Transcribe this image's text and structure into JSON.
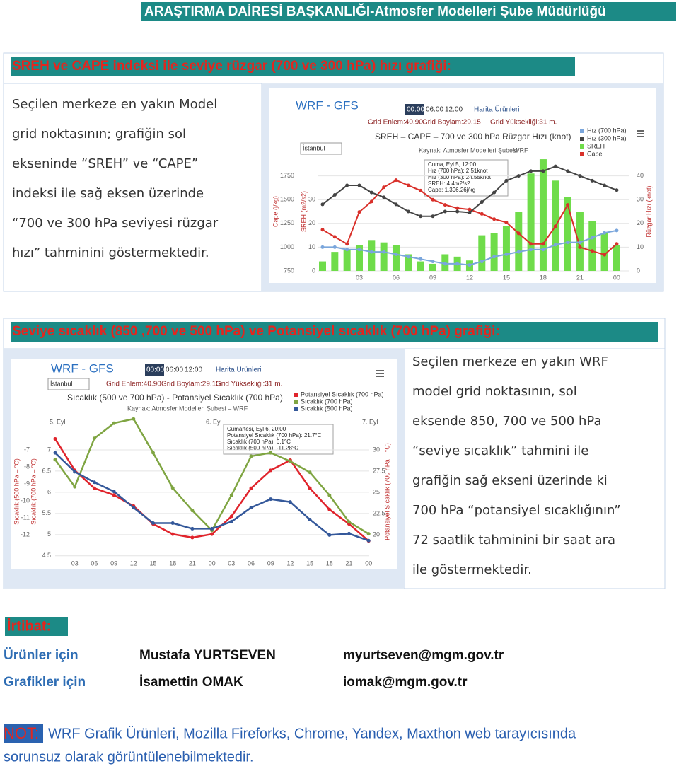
{
  "header": {
    "title": "ARAŞTIRMA DAİRESİ BAŞKANLIĞI-Atmosfer Modelleri Şube Müdürlüğü"
  },
  "section1": {
    "heading": "SREH ve CAPE indeksi ile seviye rüzgar (700 ve 300 hPa) hızı grafiği:",
    "lines": [
      "Seçilen merkeze en yakın Model",
      "grid noktasının; grafiğin sol",
      "ekseninde “SREH” ve “CAPE”",
      "indeksi ile sağ eksen üzerinde",
      "“700 ve 300 hPa seviyesi rüzgar",
      "hızı” tahminini göstermektedir."
    ],
    "chart": {
      "brand": "WRF - GFS",
      "times": [
        "00:00",
        "06:00",
        "12:00"
      ],
      "menu": "Harita Ürünleri",
      "station": "İstanbul",
      "grid_info": [
        "Grid Enlem:40.90",
        "Grid Boylam:29.15",
        "Grid Yüksekliği:31 m."
      ],
      "title": "SREH – CAPE – 700 ve 300 hPa Rüzgar Hızı (knot)",
      "subtitle": "Kaynak: Atmosfer Modelleri Şubesi",
      "subtitle2": "WRF",
      "tooltip": [
        "Cuma, Eyl 5, 12:00",
        "Hız (700 hPa): 2.51knot",
        "Hız (300 hPa): 24.55knot",
        "SREH: 4.4m2/s2",
        "Cape: 1,396.26j/kg"
      ],
      "categories": [
        null,
        null,
        null,
        "03",
        null,
        null,
        "06",
        null,
        null,
        "09",
        null,
        null,
        "12",
        null,
        null,
        "15",
        null,
        null,
        "18",
        null,
        null,
        "21",
        null,
        null,
        "00"
      ],
      "axes": {
        "cape": {
          "label": "Cape (j/kg)",
          "lim": [
            750,
            2000
          ],
          "ticks": [
            750,
            1000,
            1250,
            1500,
            1750
          ]
        },
        "sreh": {
          "label": "SREH (m2/s2)",
          "lim": [
            0,
            50
          ],
          "ticks": [
            0,
            10,
            20,
            30
          ]
        },
        "wind": {
          "label": "Rüzgar Hızı (knot)",
          "lim": [
            0,
            50
          ],
          "ticks": [
            0,
            10,
            20,
            30,
            40
          ]
        }
      },
      "series": [
        {
          "name": "Hız (700 hPa)",
          "color": "#7aa6dc",
          "kind": "line",
          "axis": "wind",
          "values": [
            10,
            10,
            9,
            9,
            8,
            8,
            7,
            6,
            5,
            4,
            3,
            3,
            2.51,
            4,
            6,
            7,
            8,
            9,
            9,
            11,
            12,
            12,
            14,
            16,
            17
          ]
        },
        {
          "name": "Hız (300 hPa)",
          "color": "#444444",
          "kind": "line",
          "axis": "wind",
          "values": [
            28,
            32,
            36,
            36,
            33,
            31,
            28,
            25,
            23,
            23,
            25,
            25,
            24.55,
            29,
            33,
            38,
            40,
            42,
            42,
            44,
            42,
            40,
            38,
            36,
            34
          ]
        },
        {
          "name": "SREH",
          "color": "#6fdc4a",
          "kind": "bar",
          "axis": "sreh",
          "values": [
            4,
            8,
            9,
            11,
            13,
            12,
            11,
            7,
            4,
            3,
            7,
            6,
            4.4,
            15,
            16,
            19,
            25,
            41,
            47,
            38,
            31,
            25,
            21,
            16,
            11
          ]
        },
        {
          "name": "Cape",
          "color": "#d9302a",
          "kind": "line",
          "axis": "cape",
          "values": [
            1183,
            1108,
            1034,
            1370,
            1480,
            1630,
            1705,
            1650,
            1595,
            1500,
            1445,
            1410,
            1396.26,
            1350,
            1295,
            1260,
            1145,
            1035,
            1035,
            1220,
            1445,
            1000,
            960,
            920,
            1035
          ]
        }
      ]
    }
  },
  "section2": {
    "heading": "Seviye sıcaklık (850 ,700 ve 500 hPa) ve Potansiyel sıcaklık (700 hPa) grafiği:",
    "lines": [
      "Seçilen merkeze en yakın WRF",
      "model grid noktasının, sol",
      "eksende 850, 700 ve 500 hPa",
      "“seviye sıcaklık” tahmini ile",
      "grafiğin sağ ekseni üzerinde ki",
      "700 hPa “potansiyel sıcaklığının”",
      "72 saatlik tahminini bir saat ara",
      "ile göstermektedir."
    ],
    "chart": {
      "brand": "WRF - GFS",
      "times": [
        "00:00",
        "06:00",
        "12:00"
      ],
      "menu": "Harita Ürünleri",
      "station": "İstanbul",
      "grid_info": [
        "Grid Enlem:40.90",
        "Grid Boylam:29.15",
        "Grid Yüksekliği:31 m."
      ],
      "title": "Sıcaklık (500 ve 700 hPa) - Potansiyel Sıcaklık (700 hPa)",
      "subtitle": "Kaynak: Atmosfer Modelleri Şubesi – WRF",
      "days": [
        "5. Eyl",
        "6. Eyl",
        "7. Eyl"
      ],
      "tooltip": [
        "Cumartesi, Eyl 6, 20:00",
        "Potansiyel Sıcaklık (700 hPa): 21.7°C",
        "Sıcaklık (700 hPa): 6.1°C",
        "Sıcaklık (500 hPa): -11.28°C"
      ],
      "categories": [
        null,
        "03",
        "06",
        "09",
        "12",
        "15",
        "18",
        "21",
        "00",
        "03",
        "06",
        "09",
        "12",
        "15",
        "18",
        "21",
        "00"
      ],
      "axes": {
        "t500": {
          "label": "Sıcaklık (500 hPa – °C)",
          "lim": [
            -13.4,
            -5.5
          ],
          "ticks": [
            -7,
            -8,
            -9,
            -10,
            -11,
            -12
          ]
        },
        "t700": {
          "label": "Sıcaklık (700 hPa – °C)",
          "lim": [
            4.43,
            7.6
          ],
          "ticks": [
            7,
            6.5,
            6,
            5.5,
            5,
            4.5
          ]
        },
        "pot": {
          "label": "Potansiyel Sıcaklık (700 hPa – °C)",
          "lim": [
            17.2,
            33
          ],
          "ticks": [
            30,
            27.5,
            25,
            22.5,
            20
          ]
        }
      },
      "series": [
        {
          "name": "Potansiyel Sıcaklık (700 hPa)",
          "color": "#e0242c",
          "axis": "pot",
          "values": [
            31.3,
            27.6,
            25.5,
            24.7,
            23.4,
            21.3,
            20.1,
            19.7,
            20.1,
            22.2,
            25.5,
            27.6,
            28.8,
            25.5,
            23,
            21.3,
            19.3
          ]
        },
        {
          "name": "Sıcaklık (700 hPa)",
          "color": "#7fa542",
          "axis": "t700",
          "values": [
            6.77,
            6.13,
            7.27,
            7.63,
            7.73,
            6.93,
            6.1,
            5.57,
            5.1,
            5.93,
            6.85,
            6.93,
            6.73,
            6.47,
            5.93,
            5.3,
            5.02
          ]
        },
        {
          "name": "Sıcaklık (500 hPa)",
          "color": "#34589a",
          "axis": "t500",
          "values": [
            -7.17,
            -8.28,
            -8.9,
            -9.44,
            -10.39,
            -11.3,
            -11.3,
            -11.63,
            -11.63,
            -11.21,
            -10.39,
            -9.89,
            -10.06,
            -11.09,
            -12,
            -11.92,
            -12.33
          ]
        }
      ]
    }
  },
  "contact": {
    "heading": "İrtibat:",
    "rows": [
      [
        "Ürünler için",
        "Mustafa YURTSEVEN",
        "myurtseven@mgm.gov.tr"
      ],
      [
        "Grafikler için",
        "İsamettin OMAK",
        "iomak@mgm.gov.tr"
      ]
    ]
  },
  "note": {
    "label": "NOT:",
    "lines": [
      "WRF Grafik Ürünleri, Mozilla Fireforks, Chrome, Yandex,  Maxthon web tarayıcısında",
      "sorunsuz olarak görüntülenebilmektedir."
    ]
  }
}
